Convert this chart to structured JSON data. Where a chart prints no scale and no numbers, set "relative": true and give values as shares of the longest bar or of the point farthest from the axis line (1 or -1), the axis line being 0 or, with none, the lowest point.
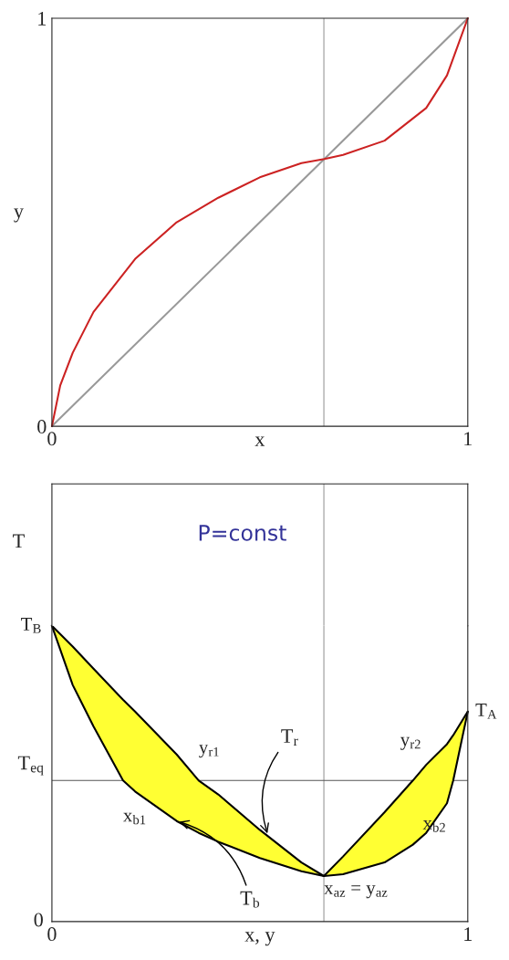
{
  "chart_data": [
    {
      "type": "line",
      "xlabel": "x",
      "ylabel": "y",
      "xlim": [
        0,
        1
      ],
      "ylim": [
        0,
        1
      ],
      "xticks": [
        0,
        1
      ],
      "yticks": [
        0,
        1
      ],
      "grid": false,
      "legend": false,
      "marker": "none",
      "line_style": "solid",
      "series": [
        {
          "x": [
            0,
            1
          ],
          "values": [
            0,
            1
          ],
          "color": "#999999"
        },
        {
          "x": [
            0,
            0.02,
            0.05,
            0.1,
            0.2,
            0.3,
            0.4,
            0.5,
            0.6,
            0.655,
            0.7,
            0.8,
            0.9,
            0.95,
            1
          ],
          "values": [
            0,
            0.1,
            0.18,
            0.28,
            0.41,
            0.5,
            0.56,
            0.61,
            0.645,
            0.655,
            0.665,
            0.7,
            0.78,
            0.86,
            1
          ],
          "color": "#cc2222"
        }
      ],
      "ref_lines": [
        {
          "axis": "x",
          "value": 0.654,
          "color": "#999999"
        }
      ]
    },
    {
      "type": "line",
      "xlabel": "x, y",
      "ylabel": "T",
      "relative": true,
      "xlim": [
        0,
        1
      ],
      "xticks": [
        0,
        1
      ],
      "grid": false,
      "legend": false,
      "marker": "none",
      "line_style": "solid",
      "series": [
        {
          "type": "line",
          "color": "#000000",
          "x": [
            0,
            0.05,
            0.1,
            0.171,
            0.2,
            0.3,
            0.353,
            0.4,
            0.5,
            0.6,
            0.654,
            0.7,
            0.8,
            0.868,
            0.9,
            0.95,
            0.965,
            1
          ],
          "lower": [
            1,
            0.8,
            0.66,
            0.477,
            0.44,
            0.34,
            0.3,
            0.27,
            0.215,
            0.17,
            0.154,
            0.16,
            0.2,
            0.26,
            0.3,
            0.4,
            0.477,
            0.71
          ],
          "upper": [
            1,
            0.93,
            0.855,
            0.75,
            0.71,
            0.565,
            0.477,
            0.43,
            0.31,
            0.2,
            0.154,
            0.22,
            0.37,
            0.477,
            0.53,
            0.6,
            0.63,
            0.71
          ],
          "values": [
            1,
            0.93,
            0.855,
            0.75,
            0.71,
            0.565,
            0.477,
            0.43,
            0.31,
            0.2,
            0.154,
            0.22,
            0.37,
            0.477,
            0.53,
            0.6,
            0.63,
            0.71
          ]
        }
      ],
      "ref_lines": [
        {
          "axis": "x",
          "value": 0.654,
          "color": "#999999"
        },
        {
          "axis": "y",
          "value": 0.477,
          "label": "T$_{eq}$",
          "color": "#555555"
        }
      ],
      "annotations": [
        "P=const",
        "0",
        {
          "text": "T$_{B}$",
          "x": 0,
          "y": 1
        },
        {
          "text": "T$_{A}$",
          "x": 1,
          "y": 0.71
        },
        {
          "text": "y$_{r1}$",
          "x": 0.353,
          "y": 0.477
        },
        {
          "text": "x$_{b1}$",
          "x": 0.171,
          "y": 0.477
        },
        {
          "text": "y$_{r2}$",
          "x": 0.868,
          "y": 0.477
        },
        {
          "text": "x$_{b2}$",
          "x": 0.965,
          "y": 0.477
        },
        {
          "text": "x$_{az}$ = y$_{az}$",
          "x": 0.654,
          "y": 0.154
        },
        {
          "text": "T$_{r}$",
          "x": 0.52,
          "y": 0.29
        },
        {
          "text": "T$_{b}$",
          "x": 0.3,
          "y": 0.34
        }
      ]
    }
  ]
}
